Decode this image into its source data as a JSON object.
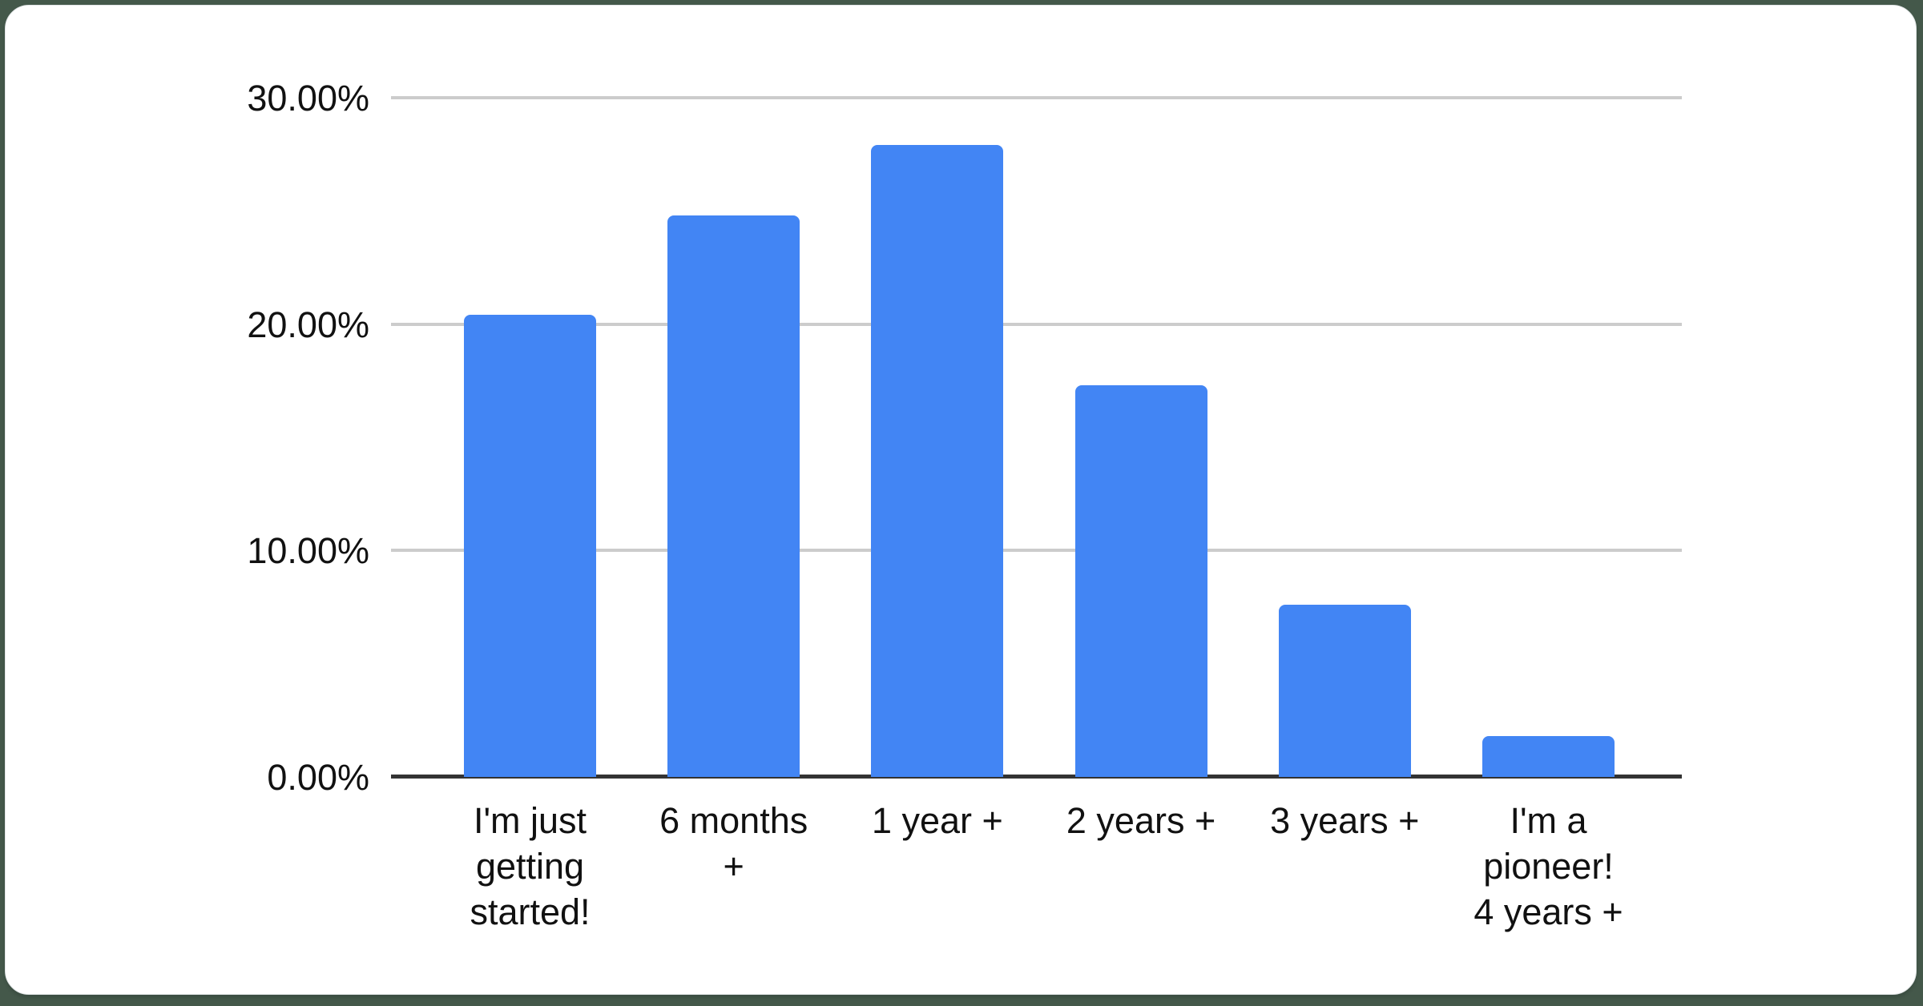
{
  "page": {
    "background_color": "#44584a",
    "card_color": "#ffffff"
  },
  "chart_data": {
    "type": "bar",
    "title": "",
    "xlabel": "",
    "ylabel": "",
    "legend": "none",
    "grid": true,
    "ylim": [
      0,
      30
    ],
    "y_ticks": [
      "30.00%",
      "20.00%",
      "10.00%",
      "0.00%"
    ],
    "y_tick_values": [
      30,
      20,
      10,
      0
    ],
    "categories": [
      "I'm just getting started!",
      "6 months +",
      "1 year +",
      "2 years +",
      "3 years +",
      "I'm a pioneer! 4 years +"
    ],
    "category_lines": [
      [
        "I'm just",
        "getting",
        "started!"
      ],
      [
        "6 months",
        "+"
      ],
      [
        "1 year +"
      ],
      [
        "2 years +"
      ],
      [
        "3 years +"
      ],
      [
        "I'm a",
        "pioneer!",
        "4 years +"
      ]
    ],
    "values": [
      20.4,
      24.8,
      27.9,
      17.3,
      7.6,
      1.8
    ],
    "unit": "%",
    "bar_color": "#4285f4",
    "gridline_color": "#cccccc",
    "axis_line_color": "#333333",
    "label_color": "#111111"
  }
}
